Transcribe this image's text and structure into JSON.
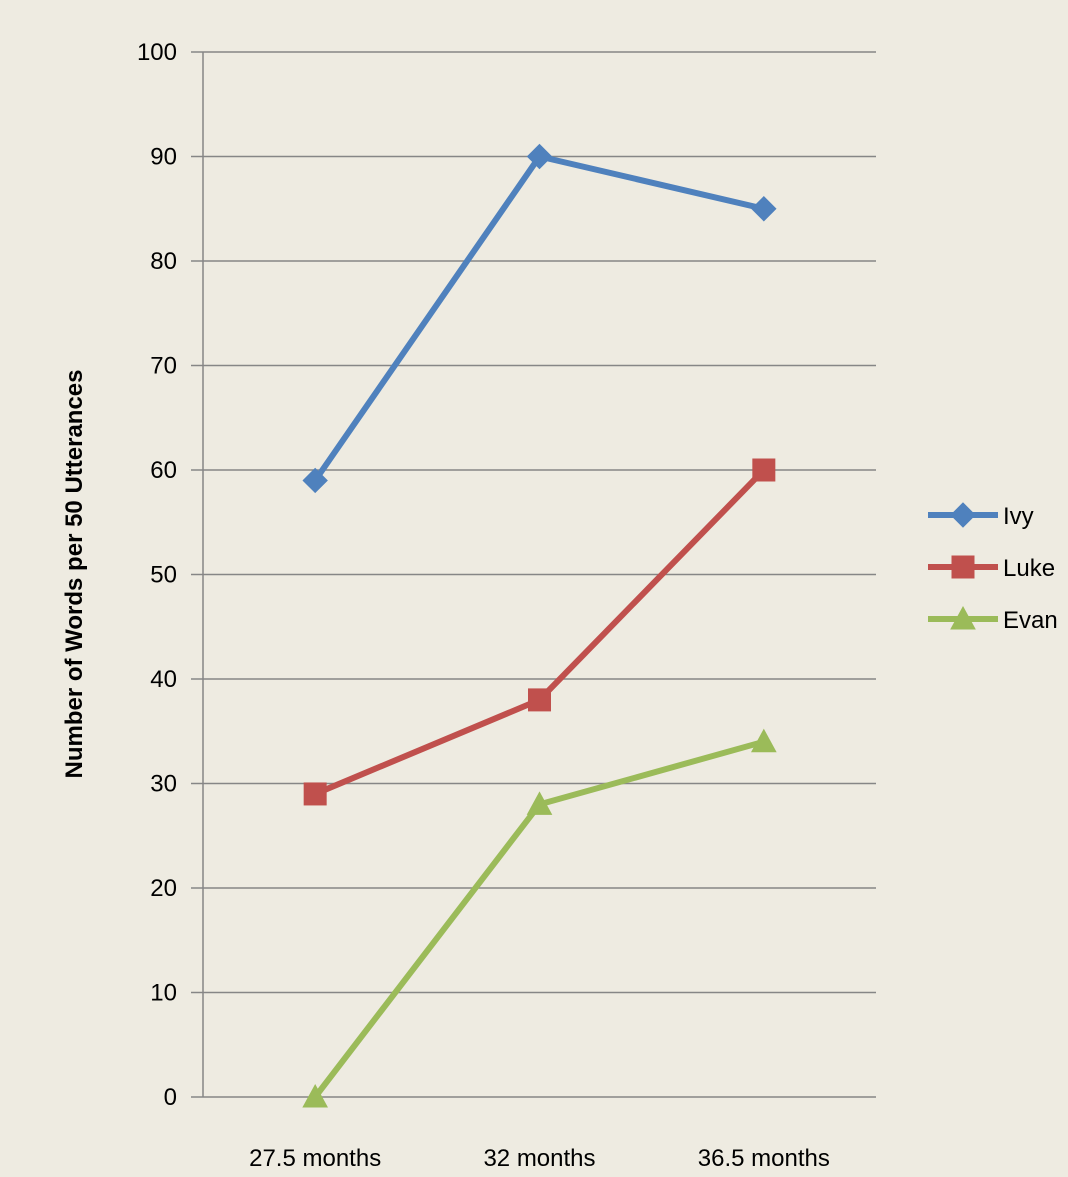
{
  "chart_data": {
    "type": "line",
    "title": "",
    "xlabel": "",
    "ylabel": "Number of Words per 50 Utterances",
    "categories": [
      "27.5 months",
      "32 months",
      "36.5 months"
    ],
    "ylim": [
      0,
      100
    ],
    "yticks": [
      0,
      10,
      20,
      30,
      40,
      50,
      60,
      70,
      80,
      90,
      100
    ],
    "grid": true,
    "legend": "right",
    "series": [
      {
        "name": "Ivy",
        "values": [
          59,
          90,
          85
        ],
        "color": "#4F81BD",
        "marker": "diamond"
      },
      {
        "name": "Luke",
        "values": [
          29,
          38,
          60
        ],
        "color": "#C0504D",
        "marker": "square"
      },
      {
        "name": "Evan",
        "values": [
          0,
          28,
          34
        ],
        "color": "#9BBB59",
        "marker": "triangle"
      }
    ]
  }
}
